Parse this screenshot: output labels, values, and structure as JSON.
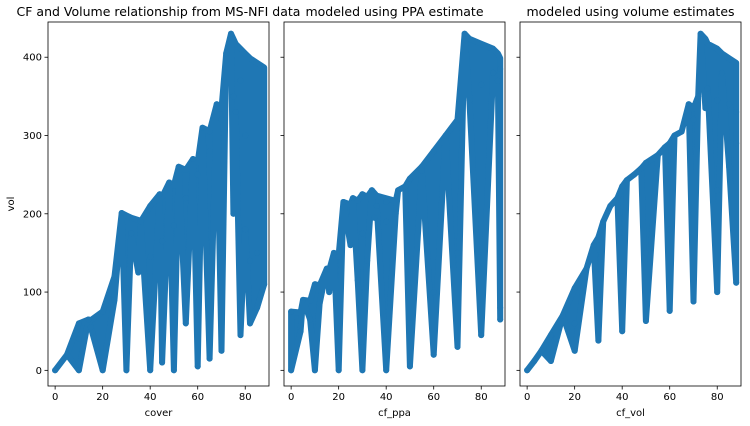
{
  "colors": {
    "scatter": "#1f77b4",
    "background": "#ffffff"
  },
  "chart_data": [
    {
      "type": "scatter",
      "title": "CF and Volume relationship from MS-NFI data",
      "xlabel": "cover",
      "ylabel": "vol",
      "xlim": [
        -3,
        90
      ],
      "ylim": [
        -20,
        445
      ],
      "xticks": [
        0,
        20,
        40,
        60,
        80
      ],
      "yticks": [
        0,
        100,
        200,
        300,
        400
      ],
      "sharey": false,
      "series": [
        {
          "points": [
            [
              0,
              0
            ],
            [
              10,
              0
            ],
            [
              20,
              0
            ],
            [
              30,
              0
            ],
            [
              40,
              0
            ],
            [
              50,
              0
            ],
            [
              60,
              5
            ],
            [
              65,
              15
            ],
            [
              70,
              25
            ],
            [
              78,
              45
            ],
            [
              82,
              60
            ],
            [
              85,
              80
            ],
            [
              88,
              110
            ],
            [
              5,
              20
            ],
            [
              10,
              40
            ],
            [
              15,
              55
            ],
            [
              20,
              75
            ],
            [
              25,
              90
            ],
            [
              30,
              105
            ],
            [
              35,
              125
            ],
            [
              40,
              145
            ],
            [
              45,
              165
            ],
            [
              50,
              185
            ],
            [
              55,
              220
            ],
            [
              60,
              250
            ],
            [
              65,
              280
            ],
            [
              70,
              320
            ],
            [
              75,
              350
            ],
            [
              78,
              370
            ],
            [
              72,
              405
            ],
            [
              60,
              100
            ],
            [
              55,
              60
            ],
            [
              50,
              30
            ],
            [
              45,
              10
            ],
            [
              70,
              150
            ],
            [
              75,
              200
            ],
            [
              80,
              180
            ],
            [
              82,
              140
            ],
            [
              85,
              150
            ],
            [
              80,
              300
            ],
            [
              76,
              330
            ],
            [
              74,
              430
            ],
            [
              10,
              60
            ],
            [
              14,
              65
            ],
            [
              25,
              120
            ],
            [
              28,
              201
            ],
            [
              32,
              175
            ],
            [
              36,
              190
            ],
            [
              40,
              210
            ],
            [
              44,
              225
            ],
            [
              48,
              240
            ],
            [
              52,
              260
            ],
            [
              58,
              270
            ],
            [
              62,
              310
            ],
            [
              68,
              340
            ]
          ]
        }
      ]
    },
    {
      "type": "scatter",
      "title": "modeled using PPA estimate",
      "xlabel": "cf_ppa",
      "ylabel": "",
      "xlim": [
        -3,
        90
      ],
      "ylim": [
        -20,
        445
      ],
      "xticks": [
        0,
        20,
        40,
        60,
        80
      ],
      "yticks": [
        0,
        100,
        200,
        300,
        400
      ],
      "sharey": true,
      "series": [
        {
          "points": [
            [
              0,
              0
            ],
            [
              10,
              0
            ],
            [
              20,
              0
            ],
            [
              30,
              0
            ],
            [
              40,
              0
            ],
            [
              50,
              5
            ],
            [
              60,
              20
            ],
            [
              70,
              30
            ],
            [
              80,
              45
            ],
            [
              88,
              65
            ],
            [
              88,
              80
            ],
            [
              0,
              75
            ],
            [
              5,
              90
            ],
            [
              10,
              110
            ],
            [
              15,
              130
            ],
            [
              20,
              145
            ],
            [
              25,
              160
            ],
            [
              30,
              175
            ],
            [
              35,
              195
            ],
            [
              40,
              215
            ],
            [
              45,
              230
            ],
            [
              50,
              245
            ],
            [
              55,
              260
            ],
            [
              60,
              280
            ],
            [
              65,
              300
            ],
            [
              70,
              320
            ],
            [
              75,
              345
            ],
            [
              80,
              365
            ],
            [
              85,
              380
            ],
            [
              88,
              385
            ],
            [
              22,
              215
            ],
            [
              26,
              220
            ],
            [
              30,
              225
            ],
            [
              34,
              230
            ],
            [
              36,
              210
            ],
            [
              40,
              190
            ],
            [
              44,
              200
            ],
            [
              48,
              235
            ],
            [
              55,
              255
            ],
            [
              73,
              430
            ],
            [
              87,
              370
            ],
            [
              70,
              150
            ],
            [
              60,
              100
            ],
            [
              50,
              60
            ],
            [
              40,
              40
            ],
            [
              30,
              30
            ],
            [
              20,
              20
            ],
            [
              10,
              10
            ],
            [
              4,
              50
            ],
            [
              8,
              65
            ],
            [
              12,
              85
            ],
            [
              16,
              100
            ],
            [
              18,
              150
            ],
            [
              28,
              115
            ],
            [
              32,
              140
            ]
          ]
        }
      ]
    },
    {
      "type": "scatter",
      "title": "modeled using volume estimates",
      "xlabel": "cf_vol",
      "ylabel": "",
      "xlim": [
        -3,
        90
      ],
      "ylim": [
        -20,
        445
      ],
      "xticks": [
        0,
        20,
        40,
        60,
        80
      ],
      "yticks": [
        0,
        100,
        200,
        300,
        400
      ],
      "sharey": true,
      "series": [
        {
          "points": [
            [
              0,
              0
            ],
            [
              10,
              12
            ],
            [
              20,
              25
            ],
            [
              30,
              38
            ],
            [
              40,
              50
            ],
            [
              50,
              63
            ],
            [
              60,
              76
            ],
            [
              70,
              88
            ],
            [
              80,
              100
            ],
            [
              88,
              112
            ],
            [
              3,
              12
            ],
            [
              6,
              25
            ],
            [
              10,
              45
            ],
            [
              15,
              70
            ],
            [
              20,
              105
            ],
            [
              25,
              130
            ],
            [
              30,
              170
            ],
            [
              35,
              210
            ],
            [
              40,
              235
            ],
            [
              45,
              250
            ],
            [
              50,
              265
            ],
            [
              55,
              275
            ],
            [
              60,
              290
            ],
            [
              65,
              305
            ],
            [
              70,
              320
            ],
            [
              75,
              335
            ],
            [
              80,
              345
            ],
            [
              85,
              340
            ],
            [
              88,
              330
            ],
            [
              28,
              160
            ],
            [
              32,
              190
            ],
            [
              38,
              220
            ],
            [
              42,
              243
            ],
            [
              48,
              258
            ],
            [
              58,
              285
            ],
            [
              62,
              300
            ],
            [
              68,
              340
            ],
            [
              72,
              350
            ],
            [
              76,
              360
            ],
            [
              82,
              380
            ],
            [
              73,
              430
            ],
            [
              20,
              60
            ],
            [
              30,
              90
            ],
            [
              40,
              120
            ],
            [
              50,
              150
            ],
            [
              60,
              180
            ],
            [
              70,
              200
            ],
            [
              80,
              230
            ],
            [
              85,
              260
            ],
            [
              88,
              290
            ]
          ]
        }
      ]
    }
  ]
}
